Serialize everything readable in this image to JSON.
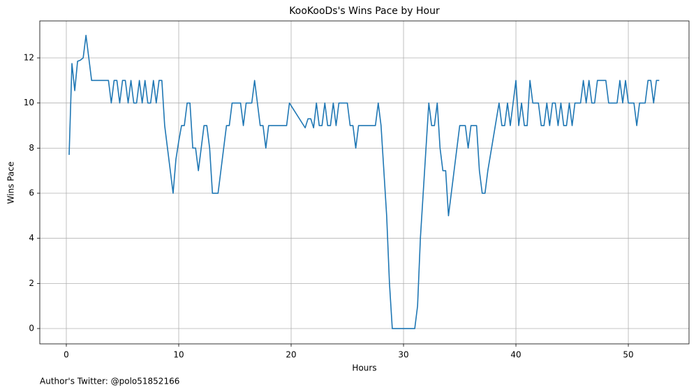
{
  "chart_data": {
    "type": "line",
    "title": "KooKooDs's Wins Pace by Hour",
    "xlabel": "Hours",
    "ylabel": "Wins Pace",
    "annotation": "Author's Twitter: @polo51852166",
    "xlim": [
      -2.36,
      55.4
    ],
    "ylim": [
      -0.68,
      13.64
    ],
    "xticks": [
      0,
      10,
      20,
      30,
      40,
      50
    ],
    "yticks": [
      0,
      2,
      4,
      6,
      8,
      10,
      12
    ],
    "grid": true,
    "series": [
      {
        "name": "Wins Pace",
        "color": "#1f77b4",
        "x": [
          0.25,
          0.5,
          0.75,
          1,
          1.25,
          1.5,
          1.75,
          2.25,
          3.75,
          4,
          4.25,
          4.5,
          4.75,
          5,
          5.25,
          5.5,
          5.75,
          6,
          6.25,
          6.5,
          6.75,
          7,
          7.25,
          7.5,
          7.75,
          8,
          8.25,
          8.5,
          8.75,
          9,
          9.5,
          9.75,
          10,
          10.25,
          10.5,
          10.75,
          11,
          11.25,
          11.5,
          11.75,
          12,
          12.25,
          12.5,
          12.75,
          13,
          13.5,
          13.75,
          14,
          14.25,
          14.5,
          14.75,
          15.5,
          15.75,
          16,
          16.5,
          16.75,
          17,
          17.25,
          17.5,
          17.75,
          18,
          19.6,
          19.85,
          21.25,
          21.5,
          21.75,
          22,
          22.25,
          22.5,
          22.75,
          23,
          23.25,
          23.5,
          23.75,
          24,
          24.25,
          25,
          25.25,
          25.5,
          25.75,
          26,
          27.5,
          27.75,
          28,
          28.25,
          28.5,
          28.75,
          29,
          31,
          31.25,
          31.5,
          31.75,
          32,
          32.25,
          32.5,
          32.75,
          33,
          33.25,
          33.5,
          33.75,
          34,
          34.25,
          35,
          35.5,
          35.75,
          36,
          36.5,
          36.75,
          37,
          37.25,
          37.5,
          38.5,
          38.75,
          39,
          39.25,
          39.5,
          39.75,
          40,
          40.25,
          40.5,
          40.75,
          41,
          41.25,
          41.5,
          42,
          42.25,
          42.5,
          42.75,
          43,
          43.25,
          43.5,
          43.75,
          44,
          44.25,
          44.5,
          44.75,
          45,
          45.25,
          45.75,
          46,
          46.25,
          46.5,
          46.75,
          47,
          47.25,
          48,
          48.25,
          49,
          49.25,
          49.5,
          49.75,
          50,
          50.5,
          50.75,
          51,
          51.5,
          51.75,
          52,
          52.25,
          52.5,
          52.75
        ],
        "values": [
          7.7,
          11.75,
          10.55,
          11.85,
          11.9,
          12,
          13,
          11,
          11,
          10,
          11,
          11,
          10,
          11,
          11,
          10,
          11,
          10,
          10,
          11,
          10,
          11,
          10,
          10,
          11,
          10,
          11,
          11,
          9,
          8,
          6,
          7.5,
          8.3,
          9,
          9,
          10,
          10,
          8,
          8,
          7,
          8,
          9,
          9,
          8,
          6,
          6,
          7,
          8,
          9,
          9,
          10,
          10,
          9,
          10,
          10,
          11,
          10,
          9,
          9,
          8,
          9,
          9,
          10,
          8.9,
          9.3,
          9.3,
          8.9,
          10,
          9,
          9,
          10,
          9,
          9,
          10,
          9,
          10,
          10,
          9,
          9,
          8,
          9,
          9,
          10,
          9,
          7,
          5,
          2,
          0,
          0,
          1,
          4,
          6,
          8,
          10,
          9,
          9,
          10,
          8,
          7,
          7,
          5,
          6,
          9,
          9,
          8,
          9,
          9,
          7,
          6,
          6,
          7,
          10,
          9,
          9,
          10,
          9,
          10,
          11,
          9,
          10,
          9,
          9,
          11,
          10,
          10,
          9,
          9,
          10,
          9,
          10,
          10,
          9,
          10,
          9,
          9,
          10,
          9,
          10,
          10,
          11,
          10,
          11,
          10,
          10,
          11,
          11,
          10,
          10,
          11,
          10,
          11,
          10,
          10,
          9,
          10,
          10,
          11,
          11,
          10,
          11,
          11
        ]
      }
    ]
  }
}
